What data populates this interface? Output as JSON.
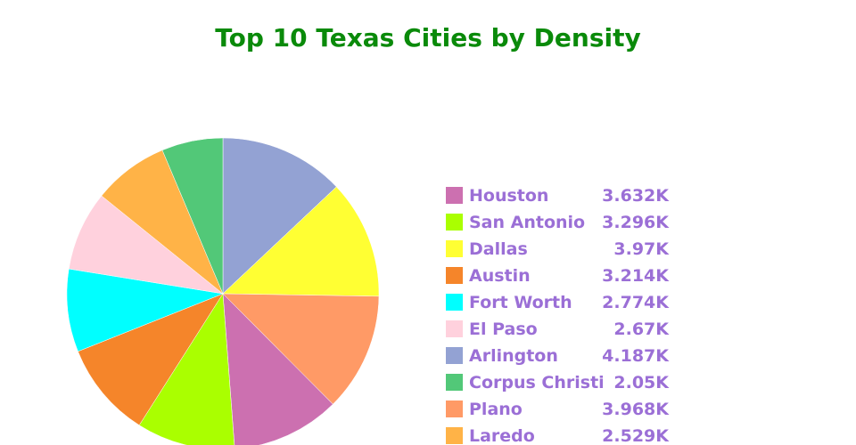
{
  "chart_data": {
    "type": "pie",
    "title": "Top 10 Texas Cities by Density",
    "title_color": "#0a8a0a",
    "label_color": "#9b6fd6",
    "start_angle_deg": 0,
    "direction": "clockwise",
    "legend_position": "right",
    "slices": [
      {
        "label": "Arlington",
        "value": 4187,
        "display": "4.187K",
        "color": "#93a2d3"
      },
      {
        "label": "Dallas",
        "value": 3970,
        "display": "3.97K",
        "color": "#ffff33"
      },
      {
        "label": "Plano",
        "value": 3968,
        "display": "3.968K",
        "color": "#ff9a66"
      },
      {
        "label": "Houston",
        "value": 3632,
        "display": "3.632K",
        "color": "#cc70b0"
      },
      {
        "label": "San Antonio",
        "value": 3296,
        "display": "3.296K",
        "color": "#aaff00"
      },
      {
        "label": "Austin",
        "value": 3214,
        "display": "3.214K",
        "color": "#f5852a"
      },
      {
        "label": "Fort Worth",
        "value": 2774,
        "display": "2.774K",
        "color": "#00ffff"
      },
      {
        "label": "El Paso",
        "value": 2670,
        "display": "2.67K",
        "color": "#ffd1dd"
      },
      {
        "label": "Laredo",
        "value": 2529,
        "display": "2.529K",
        "color": "#ffb347"
      },
      {
        "label": "Corpus Christi",
        "value": 2050,
        "display": "2.05K",
        "color": "#52c878"
      }
    ],
    "legend": [
      {
        "label": "Houston",
        "display": "3.632K",
        "color": "#cc70b0"
      },
      {
        "label": "San Antonio",
        "display": "3.296K",
        "color": "#aaff00"
      },
      {
        "label": "Dallas",
        "display": "3.97K",
        "color": "#ffff33"
      },
      {
        "label": "Austin",
        "display": "3.214K",
        "color": "#f5852a"
      },
      {
        "label": "Fort Worth",
        "display": "2.774K",
        "color": "#00ffff"
      },
      {
        "label": "El Paso",
        "display": "2.67K",
        "color": "#ffd1dd"
      },
      {
        "label": "Arlington",
        "display": "4.187K",
        "color": "#93a2d3"
      },
      {
        "label": "Corpus Christi",
        "display": "2.05K",
        "color": "#52c878"
      },
      {
        "label": "Plano",
        "display": "3.968K",
        "color": "#ff9a66"
      },
      {
        "label": "Laredo",
        "display": "2.529K",
        "color": "#ffb347"
      }
    ]
  }
}
